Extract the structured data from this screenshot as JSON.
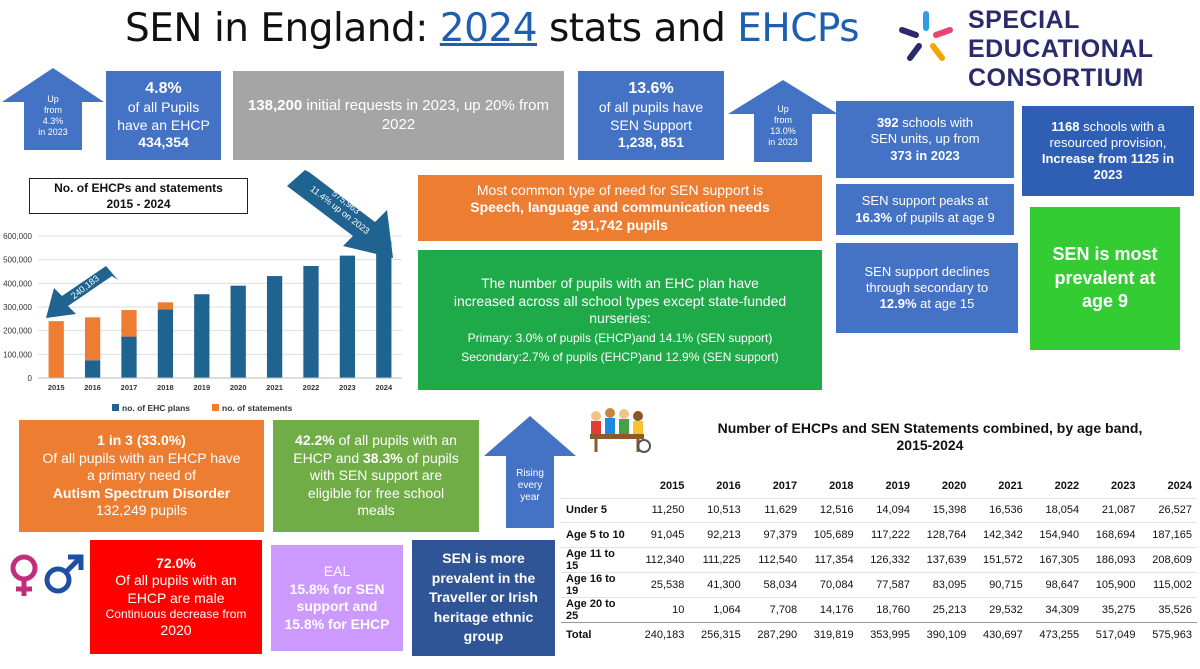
{
  "header": {
    "title_part1": "SEN in England: ",
    "title_year": "2024",
    "title_part2": " stats and ",
    "title_ehcps": "EHCPs",
    "logo_line1": "SPECIAL",
    "logo_line2": "EDUCATIONAL",
    "logo_line3": "CONSORTIUM"
  },
  "arrows": {
    "up_ehcp": [
      "Up",
      "from",
      "4.3%",
      "in 2023"
    ],
    "up_sen": [
      "Up",
      "from",
      "13.0%",
      "in 2023"
    ],
    "rising": [
      "Rising",
      "every",
      "year"
    ],
    "chart_2024": [
      "575,963",
      "11.4% up on 2023"
    ],
    "chart_2015": "240,183"
  },
  "stats": {
    "ehcp_pct": "4.8%",
    "ehcp_line1": "of all Pupils",
    "ehcp_line2": "have an EHCP",
    "ehcp_count": "434,354",
    "requests_num": "138,200",
    "requests_text": " initial requests in 2023, up 20% from 2022",
    "sen_pct": "13.6%",
    "sen_line1": "of all pupils have",
    "sen_line2": "SEN Support",
    "sen_count": "1,238, 851",
    "units_num": "392",
    "units_text1": " schools with",
    "units_text2": "SEN units, up from",
    "units_text3": "373 in 2023",
    "resourced_num": "1168",
    "resourced_text1": " schools with a",
    "resourced_text2": "resourced provision,",
    "resourced_text3": "Increase from 1125 in",
    "resourced_text4": "2023",
    "common_line1": "Most common type of need for SEN support is",
    "common_line2": "Speech, language and communication needs",
    "common_line3": "291,742 pupils",
    "peak_line1": "SEN support peaks at",
    "peak_pct": "16.3%",
    "peak_text": " of pupils at age 9",
    "declines_line1": "SEN support declines",
    "declines_line2": "through secondary to",
    "declines_pct": "12.9%",
    "declines_text": " at age 15",
    "prevalent_age": "SEN is most prevalent at age 9",
    "increase_line1": "The number of pupils with an EHC plan have",
    "increase_line2": "increased across all school types except state-funded",
    "increase_line3": "nurseries:",
    "increase_primary": "Primary: 3.0% of pupils (EHCP)and 14.1% (SEN support)",
    "increase_secondary": "Secondary:2.7% of pupils (EHCP)and 12.9% (SEN support)",
    "autism_head": "1 in 3 (33.0%)",
    "autism_line1": "Of all pupils with an EHCP have",
    "autism_line2": "a primary need of",
    "autism_line3": "Autism Spectrum Disorder",
    "autism_line4": "132,249 pupils",
    "fsm_pct1": "42.2%",
    "fsm_text1": " of all pupils with an",
    "fsm_text2a": "EHCP and ",
    "fsm_pct2": "38.3%",
    "fsm_text2b": " of pupils",
    "fsm_text3": "with SEN support are",
    "fsm_text4": "eligible for free school",
    "fsm_text5": "meals",
    "male_pct": "72.0%",
    "male_line1": "Of all pupils with an",
    "male_line2": "EHCP are male",
    "male_line3": "Continuous decrease from",
    "male_line4": "2020",
    "eal_line1": "EAL",
    "eal_line2": "15.8% for SEN",
    "eal_line3": "support and",
    "eal_line4": "15.8% for EHCP",
    "traveller": "SEN is more prevalent in the Traveller or Irish heritage ethnic group"
  },
  "chart_data": {
    "type": "bar",
    "stacked": true,
    "title": "No. of EHCPs and statements 2015 - 2024",
    "categories": [
      "2015",
      "2016",
      "2017",
      "2018",
      "2019",
      "2020",
      "2021",
      "2022",
      "2023",
      "2024"
    ],
    "series": [
      {
        "name": "no. of EHC plans",
        "values": [
          0,
          75000,
          175000,
          290000,
          353995,
          390109,
          430697,
          473255,
          517049,
          575963
        ],
        "color": "#1f6391"
      },
      {
        "name": "no. of statements",
        "values": [
          240183,
          181315,
          112290,
          29819,
          0,
          0,
          0,
          0,
          0,
          0
        ],
        "color": "#ed7d31"
      }
    ],
    "yticks": [
      "0",
      "100,000",
      "200,000",
      "300,000",
      "400,000",
      "500,000",
      "600,000"
    ],
    "ylim": [
      0,
      600000
    ],
    "legend": "bottom",
    "grid": true
  },
  "age_table": {
    "title_line1": "Number of EHCPs and SEN Statements combined, by age band,",
    "title_line2": "2015-2024",
    "columns": [
      "2015",
      "2016",
      "2017",
      "2018",
      "2019",
      "2020",
      "2021",
      "2022",
      "2023",
      "2024"
    ],
    "rows": [
      {
        "label": "Under 5",
        "values": [
          "11,250",
          "10,513",
          "11,629",
          "12,516",
          "14,094",
          "15,398",
          "16,536",
          "18,054",
          "21,087",
          "26,527"
        ]
      },
      {
        "label": "Age 5 to 10",
        "values": [
          "91,045",
          "92,213",
          "97,379",
          "105,689",
          "117,222",
          "128,764",
          "142,342",
          "154,940",
          "168,694",
          "187,165"
        ]
      },
      {
        "label": "Age 11 to 15",
        "values": [
          "112,340",
          "111,225",
          "112,540",
          "117,354",
          "126,332",
          "137,639",
          "151,572",
          "167,305",
          "186,093",
          "208,609"
        ]
      },
      {
        "label": "Age 16 to 19",
        "values": [
          "25,538",
          "41,300",
          "58,034",
          "70,084",
          "77,587",
          "83,095",
          "90,715",
          "98,647",
          "105,900",
          "115,002"
        ]
      },
      {
        "label": "Age 20 to 25",
        "values": [
          "10",
          "1,064",
          "7,708",
          "14,176",
          "18,760",
          "25,213",
          "29,532",
          "34,309",
          "35,275",
          "35,526"
        ]
      },
      {
        "label": "Total",
        "values": [
          "240,183",
          "256,315",
          "287,290",
          "319,819",
          "353,995",
          "390,109",
          "430,697",
          "473,255",
          "517,049",
          "575,963"
        ]
      }
    ]
  },
  "colors": {
    "blue": "#4472c4",
    "orange": "#ed7d31",
    "green": "#1faa4a",
    "navy": "#2f5597",
    "logo": "#2b2a6b",
    "female_symbol": "#c0307a",
    "male_symbol": "#1f4fa0"
  },
  "icons": {
    "logo": "star-burst-icon",
    "gender": "gender-symbols-icon",
    "children": "children-at-table-icon"
  }
}
